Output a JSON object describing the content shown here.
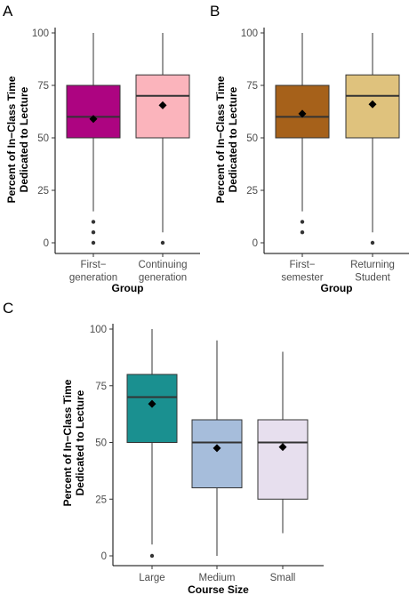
{
  "chart_data": [
    {
      "type": "box",
      "panel_label": "A",
      "ylabel_lines": [
        "Percent of In−Class Time",
        "Dedicated to Lecture"
      ],
      "xlabel": "Group",
      "ylim": [
        0,
        100
      ],
      "yticks": [
        0,
        25,
        50,
        75,
        100
      ],
      "categories": [
        {
          "label_lines": [
            "First−",
            "generation"
          ],
          "color": "#ad0481",
          "min": 15,
          "q1": 50,
          "median": 60,
          "q3": 75,
          "max": 100,
          "mean": 59,
          "outliers": [
            10,
            5,
            0
          ]
        },
        {
          "label_lines": [
            "Continuing",
            "generation"
          ],
          "color": "#fbb4bc",
          "min": 5,
          "q1": 50,
          "median": 70,
          "q3": 80,
          "max": 100,
          "mean": 65.5,
          "outliers": [
            0
          ]
        }
      ]
    },
    {
      "type": "box",
      "panel_label": "B",
      "ylabel_lines": [
        "Percent of In−Class Time",
        "Dedicated to Lecture"
      ],
      "xlabel": "Group",
      "ylim": [
        0,
        100
      ],
      "yticks": [
        0,
        25,
        50,
        75,
        100
      ],
      "categories": [
        {
          "label_lines": [
            "First−",
            "semester"
          ],
          "color": "#a6611a",
          "min": 15,
          "q1": 50,
          "median": 60,
          "q3": 75,
          "max": 100,
          "mean": 61.5,
          "outliers": [
            10,
            5
          ]
        },
        {
          "label_lines": [
            "Returning",
            "Student"
          ],
          "color": "#dfc27d",
          "min": 5,
          "q1": 50,
          "median": 70,
          "q3": 80,
          "max": 100,
          "mean": 66,
          "outliers": [
            0
          ]
        }
      ]
    },
    {
      "type": "box",
      "panel_label": "C",
      "ylabel_lines": [
        "Percent of In−Class Time",
        "Dedicated to Lecture"
      ],
      "xlabel": "Course Size",
      "ylim": [
        0,
        100
      ],
      "yticks": [
        0,
        25,
        50,
        75,
        100
      ],
      "categories": [
        {
          "label_lines": [
            "Large"
          ],
          "color": "#1a9090",
          "min": 5,
          "q1": 50,
          "median": 70,
          "q3": 80,
          "max": 100,
          "mean": 67,
          "outliers": [
            0
          ]
        },
        {
          "label_lines": [
            "Medium"
          ],
          "color": "#a6bddb",
          "min": 0,
          "q1": 30,
          "median": 50,
          "q3": 60,
          "max": 95,
          "mean": 47.5,
          "outliers": []
        },
        {
          "label_lines": [
            "Small"
          ],
          "color": "#e7dfee",
          "min": 10,
          "q1": 25,
          "median": 50,
          "q3": 60,
          "max": 90,
          "mean": 48,
          "outliers": []
        }
      ]
    }
  ]
}
